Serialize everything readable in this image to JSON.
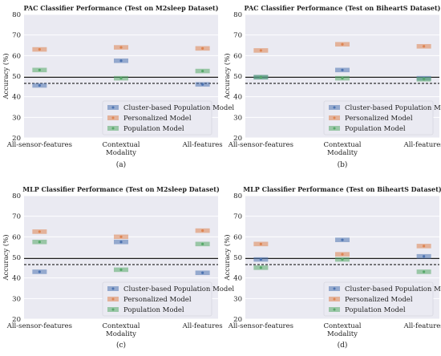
{
  "colors": {
    "cluster": "#4c72b0",
    "personalized": "#dd8452",
    "population": "#55a868",
    "plot_bg": "#eaeaf2",
    "grid": "#ffffff",
    "solid_line": "#000000",
    "dashed_line": "#000000"
  },
  "shared": {
    "xlabel": "Modality",
    "ylabel": "Accuracy (%)",
    "categories": [
      "All-sensor-features",
      "Contextual",
      "All-features"
    ],
    "yticks": [
      20,
      30,
      40,
      50,
      60,
      70,
      80
    ],
    "legend": [
      "Cluster-based Population Model",
      "Personalized Model",
      "Population Model"
    ]
  },
  "chart_data": [
    {
      "panel": "(a)",
      "type": "scatter",
      "title": "PAC Classifier Performance (Test on M2sleep Dataset)",
      "xlabel": "Modality",
      "ylabel": "Accuracy (%)",
      "ylim": [
        20,
        80
      ],
      "grid": true,
      "legend_position": "bottom-right",
      "categories": [
        "All-sensor-features",
        "Contextual",
        "All-features"
      ],
      "reference_lines": {
        "solid": 49.5,
        "dashed": 46.5
      },
      "series": [
        {
          "name": "Cluster-based Population Model",
          "values": [
            45.5,
            57.5,
            46.0
          ]
        },
        {
          "name": "Personalized Model",
          "values": [
            63.0,
            64.0,
            63.5
          ]
        },
        {
          "name": "Population Model",
          "values": [
            53.0,
            49.0,
            52.5
          ]
        }
      ]
    },
    {
      "panel": "(b)",
      "type": "scatter",
      "title": "PAC Classifier Performance (Test on BiheartS Dataset)",
      "xlabel": "Modality",
      "ylabel": "Accuracy (%)",
      "ylim": [
        20,
        80
      ],
      "grid": true,
      "legend_position": "bottom-right",
      "categories": [
        "All-sensor-features",
        "Contextual",
        "All-features"
      ],
      "reference_lines": {
        "solid": 49.5,
        "dashed": 46.5
      },
      "series": [
        {
          "name": "Cluster-based Population Model",
          "values": [
            49.5,
            53.0,
            49.0
          ]
        },
        {
          "name": "Personalized Model",
          "values": [
            62.5,
            65.5,
            64.5
          ]
        },
        {
          "name": "Population Model",
          "values": [
            49.5,
            49.0,
            48.5
          ]
        }
      ]
    },
    {
      "panel": "(c)",
      "type": "scatter",
      "title": "MLP Classifier Performance (Test on M2sleep Dataset)",
      "xlabel": "Modality",
      "ylabel": "Accuracy (%)",
      "ylim": [
        20,
        80
      ],
      "grid": true,
      "legend_position": "bottom-right",
      "categories": [
        "All-sensor-features",
        "Contextual",
        "All-features"
      ],
      "reference_lines": {
        "solid": 49.5,
        "dashed": 46.5
      },
      "series": [
        {
          "name": "Cluster-based Population Model",
          "values": [
            43.0,
            57.5,
            42.5
          ]
        },
        {
          "name": "Personalized Model",
          "values": [
            62.5,
            60.0,
            63.0
          ]
        },
        {
          "name": "Population Model",
          "values": [
            57.5,
            44.0,
            56.5
          ]
        }
      ]
    },
    {
      "panel": "(d)",
      "type": "scatter",
      "title": "MLP Classifier Performance (Test on BiheartS Dataset)",
      "xlabel": "Modality",
      "ylabel": "Accuracy (%)",
      "ylim": [
        20,
        80
      ],
      "grid": true,
      "legend_position": "bottom-right",
      "categories": [
        "All-sensor-features",
        "Contextual",
        "All-features"
      ],
      "reference_lines": {
        "solid": 49.5,
        "dashed": 46.5
      },
      "series": [
        {
          "name": "Cluster-based Population Model",
          "values": [
            49.0,
            58.5,
            50.5
          ]
        },
        {
          "name": "Personalized Model",
          "values": [
            56.5,
            51.5,
            55.5
          ]
        },
        {
          "name": "Population Model",
          "values": [
            45.0,
            49.0,
            43.0
          ]
        }
      ]
    }
  ]
}
